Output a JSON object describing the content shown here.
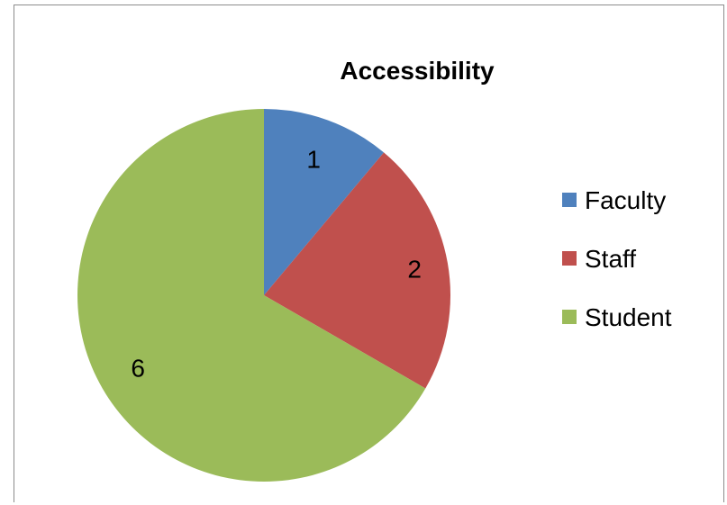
{
  "chart_data": {
    "type": "pie",
    "title": "Accessibility",
    "categories": [
      "Faculty",
      "Staff",
      "Student"
    ],
    "values": [
      1,
      2,
      6
    ],
    "colors": [
      "#4f81bd",
      "#c0504d",
      "#9bbb59"
    ],
    "data_labels": [
      "1",
      "2",
      "6"
    ],
    "legend_position": "right",
    "start_angle": "12 o'clock",
    "direction": "clockwise"
  }
}
